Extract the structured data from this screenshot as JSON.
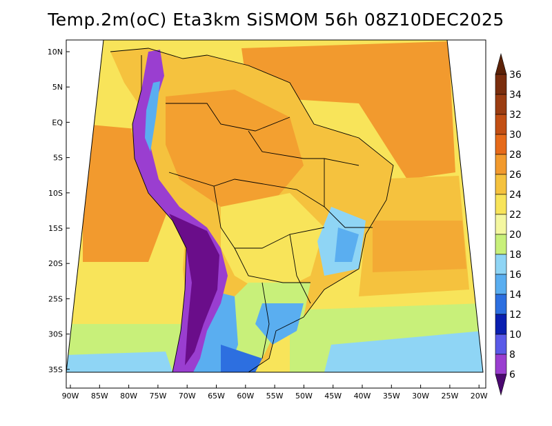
{
  "title": "Temp.2m(oC) Eta3km SiSMOM 56h 08Z10DEC2025",
  "map": {
    "variable": "2 m air temperature",
    "units": "oC",
    "lat_labels": [
      "10N",
      "5N",
      "EQ",
      "5S",
      "10S",
      "15S",
      "20S",
      "25S",
      "30S",
      "35S"
    ],
    "lon_labels": [
      "90W",
      "85W",
      "80W",
      "75W",
      "70W",
      "65W",
      "60W",
      "55W",
      "50W",
      "45W",
      "40W",
      "35W",
      "30W",
      "25W",
      "20W"
    ]
  },
  "colorbar": {
    "levels": [
      {
        "label": "36",
        "color": "#7a2e0e"
      },
      {
        "label": "34",
        "color": "#9b3d12"
      },
      {
        "label": "32",
        "color": "#c24f14"
      },
      {
        "label": "30",
        "color": "#e66a1a"
      },
      {
        "label": "28",
        "color": "#f29a2e"
      },
      {
        "label": "26",
        "color": "#f5c23e"
      },
      {
        "label": "24",
        "color": "#f8e45a"
      },
      {
        "label": "22",
        "color": "#f4f7a0"
      },
      {
        "label": "20",
        "color": "#c8f07a"
      },
      {
        "label": "18",
        "color": "#8fd5f5"
      },
      {
        "label": "16",
        "color": "#5aaef0"
      },
      {
        "label": "14",
        "color": "#2d6fe0"
      },
      {
        "label": "12",
        "color": "#0a1fb0"
      },
      {
        "label": "10",
        "color": "#5a5ae8"
      },
      {
        "label": "8",
        "color": "#9a3ed0"
      },
      {
        "label": "6",
        "color": "#6a0d8a"
      }
    ],
    "top_arrow_color": "#5c2208",
    "bottom_arrow_color": "#4b0870"
  }
}
